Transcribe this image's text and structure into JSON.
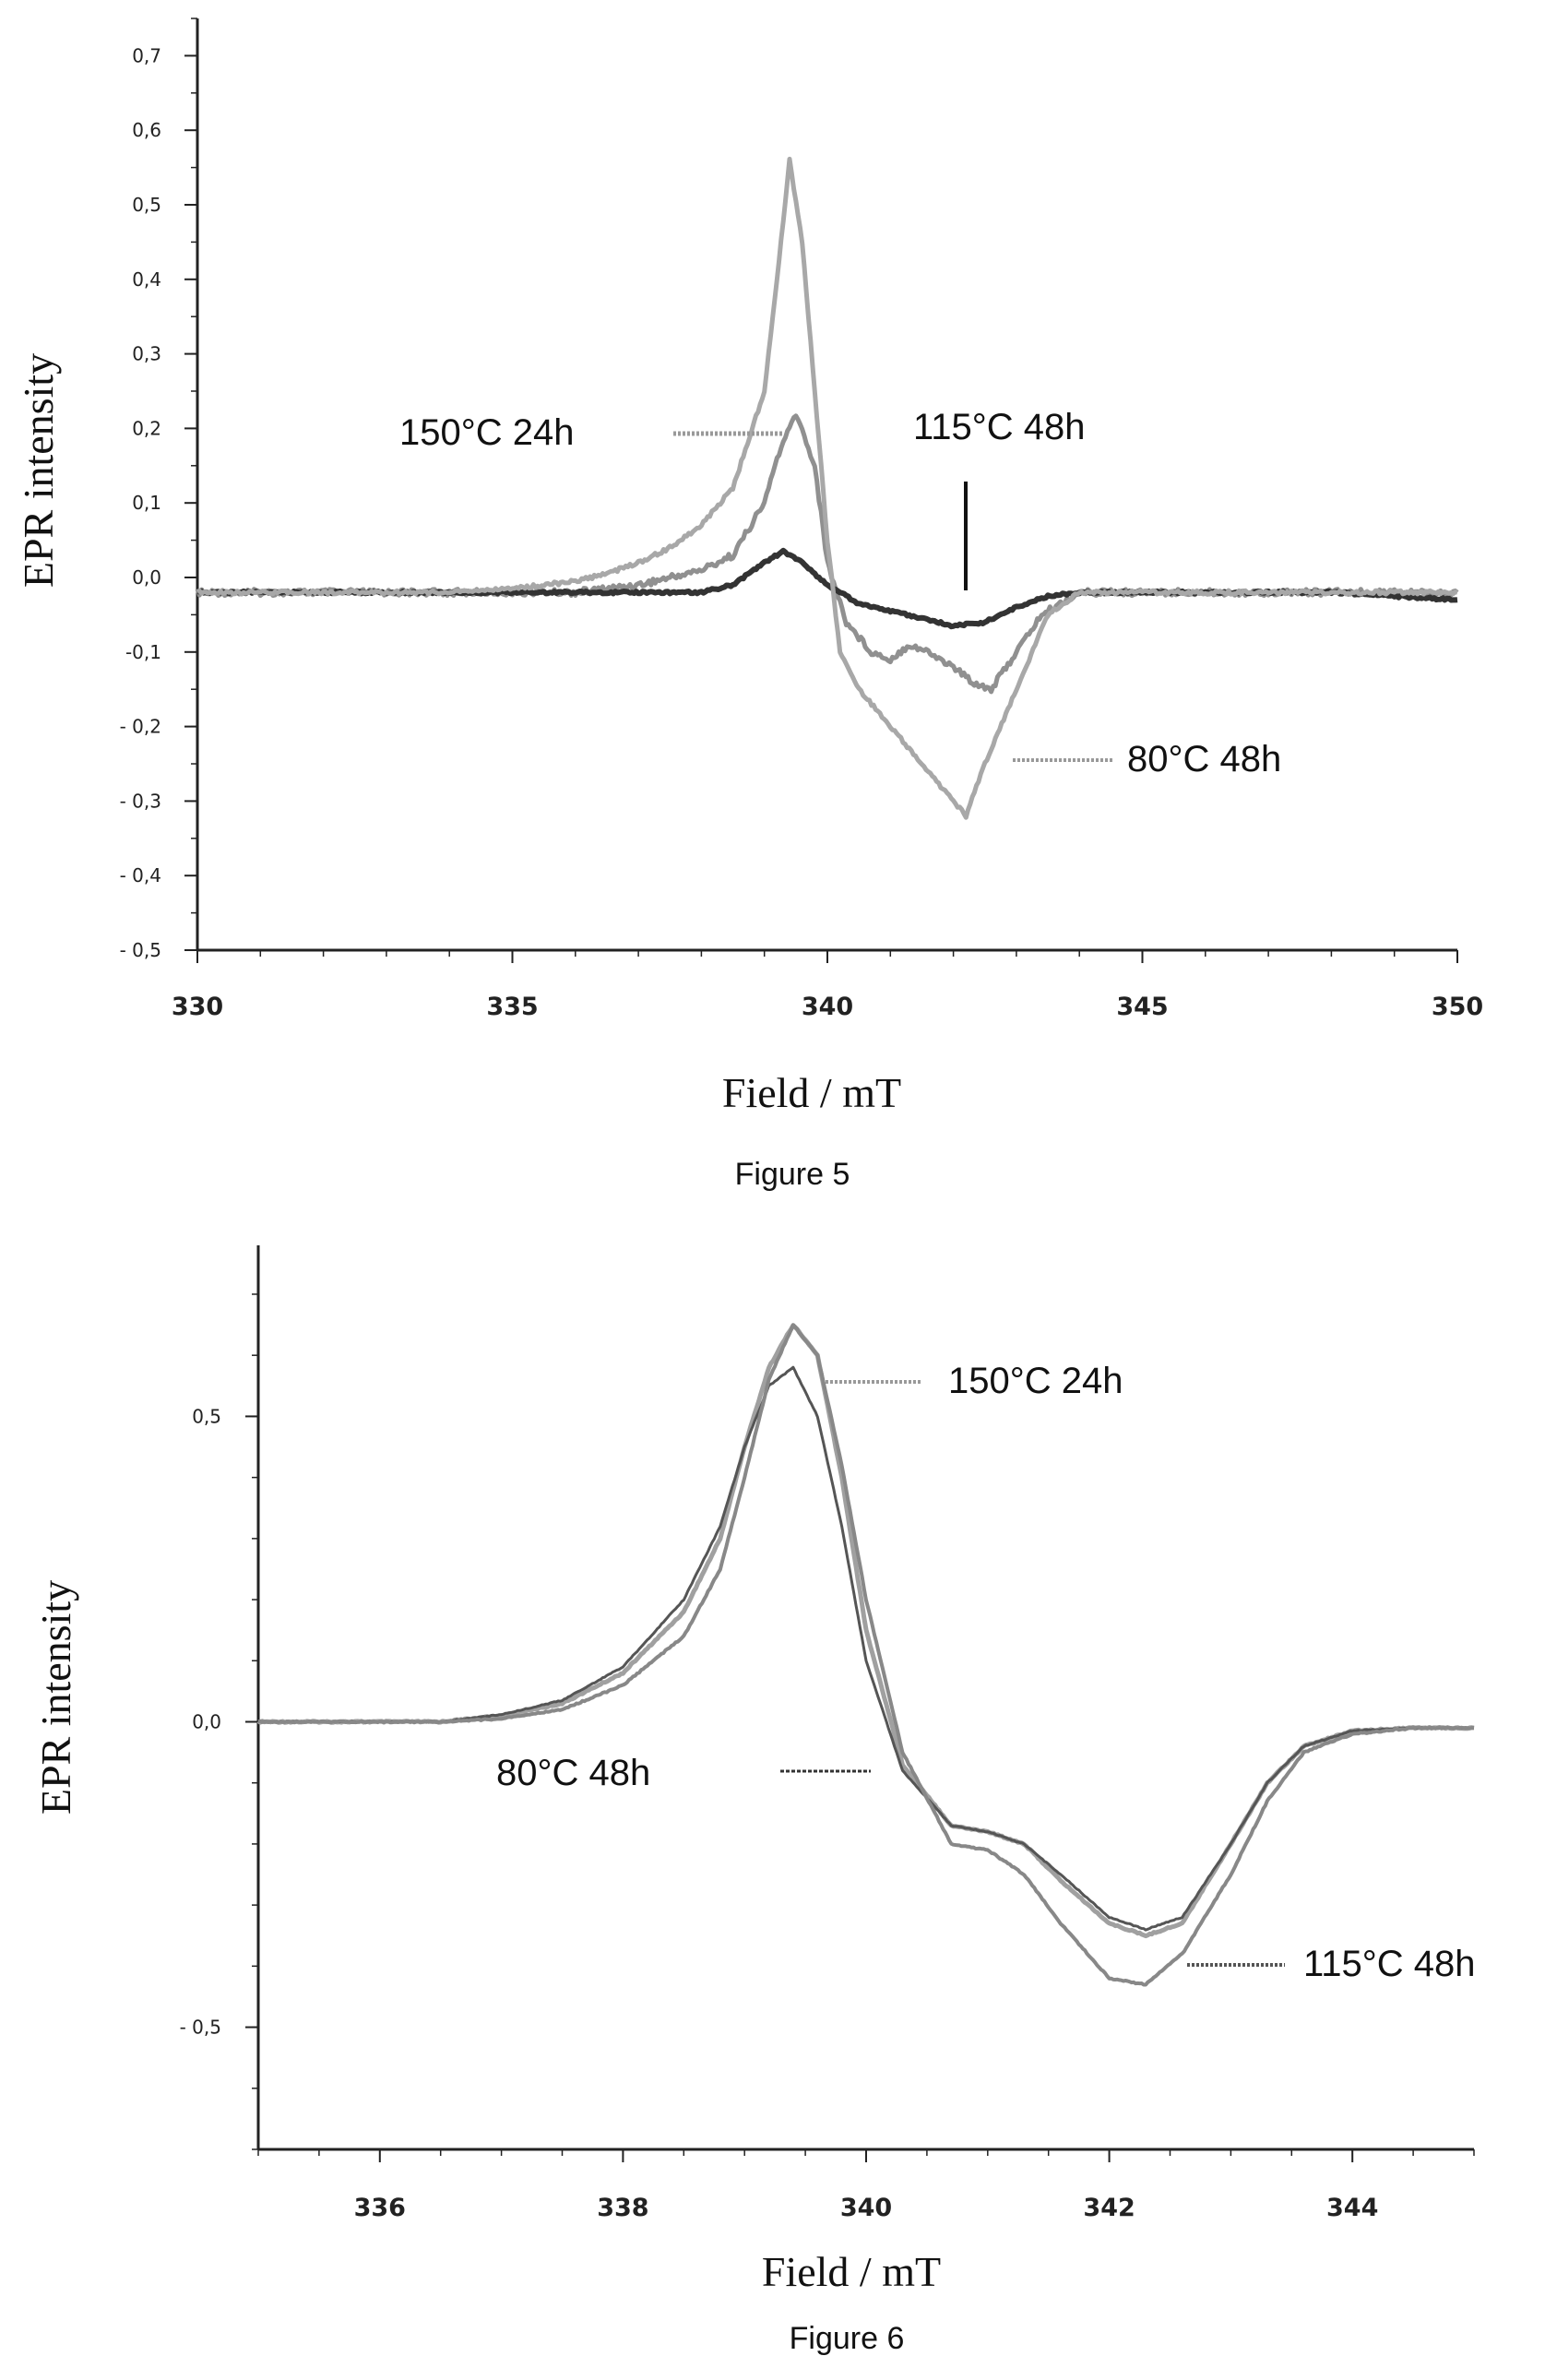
{
  "chart_data": [
    {
      "type": "line",
      "caption": "Figure 5",
      "xlabel": "Field / mT",
      "ylabel": "EPR intensity",
      "xlim": [
        330,
        350
      ],
      "ylim": [
        -0.5,
        0.75
      ],
      "x_ticks": [
        "330",
        "335",
        "340",
        "345",
        "350"
      ],
      "y_ticks": [
        "0,7",
        "0,6",
        "0,5",
        "0,4",
        "0,3",
        "0,2",
        "0,1",
        "0,0",
        "-0,1",
        "- 0,2",
        "- 0,3",
        "- 0,4",
        "- 0,5"
      ],
      "grid": false,
      "annotations": [
        "150°C 24h",
        "115°C 48h",
        "80°C 48h"
      ],
      "series": [
        {
          "name": "150°C 24h",
          "color": "#909090",
          "x": [
            330,
            332,
            334,
            336,
            337,
            337.5,
            338,
            338.5,
            339,
            339.2,
            339.5,
            339.8,
            340,
            340.3,
            340.7,
            341,
            341.3,
            341.6,
            342,
            342.3,
            342.6,
            343,
            343.4,
            344,
            346,
            348,
            350
          ],
          "y": [
            -0.02,
            -0.02,
            -0.02,
            -0.02,
            -0.01,
            0.0,
            0.01,
            0.03,
            0.1,
            0.16,
            0.22,
            0.15,
            0.02,
            -0.06,
            -0.1,
            -0.11,
            -0.09,
            -0.1,
            -0.12,
            -0.14,
            -0.15,
            -0.1,
            -0.05,
            -0.02,
            -0.02,
            -0.02,
            -0.02
          ]
        },
        {
          "name": "115°C 48h",
          "color": "#333333",
          "x": [
            330,
            332,
            334,
            336,
            337,
            338,
            338.5,
            339,
            339.3,
            339.6,
            340,
            340.5,
            341,
            341.5,
            342,
            342.5,
            343,
            343.5,
            344,
            346,
            348,
            350
          ],
          "y": [
            -0.02,
            -0.02,
            -0.02,
            -0.02,
            -0.02,
            -0.02,
            -0.01,
            0.02,
            0.035,
            0.02,
            -0.01,
            -0.035,
            -0.045,
            -0.055,
            -0.065,
            -0.06,
            -0.04,
            -0.025,
            -0.02,
            -0.02,
            -0.02,
            -0.03
          ]
        },
        {
          "name": "80°C 48h",
          "color": "#a8a8a8",
          "x": [
            330,
            332,
            334,
            335,
            336,
            336.5,
            337,
            337.5,
            338,
            338.5,
            339,
            339.2,
            339.4,
            339.6,
            339.8,
            340,
            340.2,
            340.5,
            341,
            341.5,
            342,
            342.2,
            342.5,
            343,
            343.5,
            344,
            346,
            350
          ],
          "y": [
            -0.02,
            -0.02,
            -0.02,
            -0.015,
            -0.005,
            0.005,
            0.02,
            0.04,
            0.07,
            0.12,
            0.25,
            0.4,
            0.56,
            0.45,
            0.25,
            0.05,
            -0.1,
            -0.15,
            -0.2,
            -0.25,
            -0.3,
            -0.32,
            -0.25,
            -0.15,
            -0.05,
            -0.02,
            -0.02,
            -0.02
          ]
        }
      ]
    },
    {
      "type": "line",
      "caption": "Figure 6",
      "xlabel": "Field / mT",
      "ylabel": "EPR intensity",
      "xlim": [
        335,
        345
      ],
      "ylim": [
        -0.7,
        0.78
      ],
      "x_ticks": [
        "336",
        "338",
        "340",
        "342",
        "344"
      ],
      "y_ticks": [
        "0,5",
        "0,0",
        "- 0,5"
      ],
      "grid": false,
      "annotations": [
        "150°C 24h",
        "80°C 48h",
        "115°C 48h"
      ],
      "series": [
        {
          "name": "150°C 24h",
          "color": "#a0a0a0",
          "x": [
            335,
            336,
            336.5,
            337,
            337.5,
            338,
            338.5,
            338.8,
            339,
            339.2,
            339.4,
            339.6,
            339.8,
            340,
            340.3,
            340.7,
            341,
            341.3,
            341.6,
            342,
            342.3,
            342.6,
            343,
            343.3,
            343.6,
            344,
            344.5,
            345
          ],
          "y": [
            0.0,
            0.0,
            0.0,
            0.01,
            0.03,
            0.08,
            0.18,
            0.3,
            0.45,
            0.58,
            0.65,
            0.6,
            0.4,
            0.15,
            -0.07,
            -0.17,
            -0.18,
            -0.2,
            -0.26,
            -0.33,
            -0.35,
            -0.33,
            -0.2,
            -0.1,
            -0.04,
            -0.015,
            -0.01,
            -0.01
          ]
        },
        {
          "name": "80°C 48h",
          "color": "#555555",
          "x": [
            335,
            336,
            336.5,
            337,
            337.5,
            338,
            338.5,
            338.8,
            339,
            339.2,
            339.4,
            339.6,
            339.8,
            340,
            340.3,
            340.7,
            341,
            341.3,
            341.6,
            342,
            342.3,
            342.6,
            343,
            343.3,
            343.6,
            344,
            344.5,
            345
          ],
          "y": [
            0.0,
            0.0,
            0.0,
            0.012,
            0.035,
            0.09,
            0.2,
            0.32,
            0.45,
            0.55,
            0.58,
            0.5,
            0.32,
            0.1,
            -0.08,
            -0.17,
            -0.18,
            -0.2,
            -0.25,
            -0.32,
            -0.34,
            -0.32,
            -0.2,
            -0.1,
            -0.04,
            -0.015,
            -0.01,
            -0.01
          ]
        },
        {
          "name": "115°C 48h",
          "color": "#888888",
          "x": [
            335,
            336,
            336.5,
            337,
            337.5,
            338,
            338.5,
            338.8,
            339,
            339.2,
            339.4,
            339.6,
            339.8,
            340,
            340.3,
            340.7,
            341,
            341.3,
            341.6,
            342,
            342.3,
            342.6,
            343,
            343.3,
            343.6,
            344,
            344.5,
            345
          ],
          "y": [
            0.0,
            0.0,
            0.0,
            0.005,
            0.02,
            0.06,
            0.14,
            0.25,
            0.4,
            0.56,
            0.65,
            0.6,
            0.42,
            0.2,
            -0.05,
            -0.2,
            -0.21,
            -0.25,
            -0.33,
            -0.42,
            -0.43,
            -0.38,
            -0.25,
            -0.13,
            -0.05,
            -0.02,
            -0.01,
            -0.01
          ]
        }
      ]
    }
  ]
}
